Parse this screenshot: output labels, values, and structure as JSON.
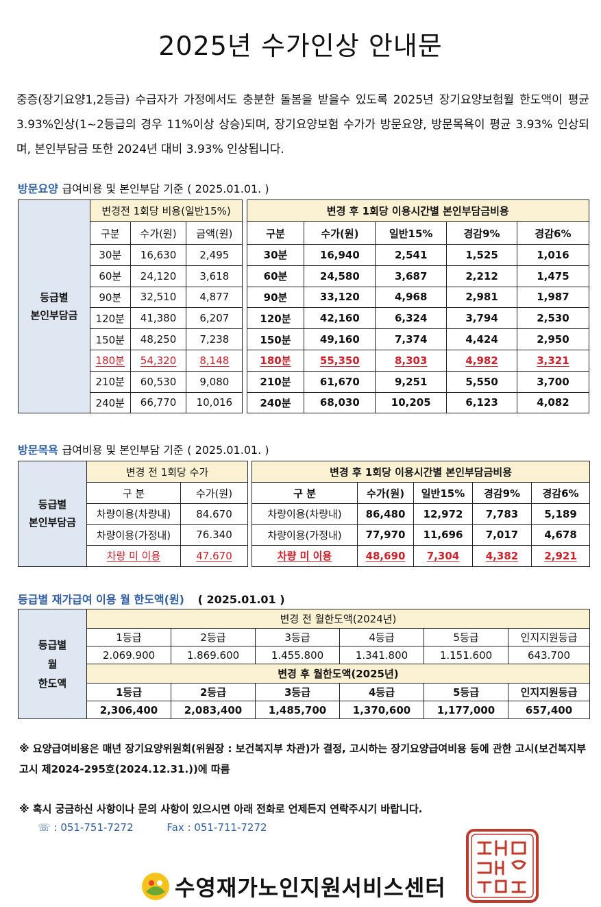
{
  "title": "2025년 수가인상 안내문",
  "intro": "중증(장기요양1,2등급) 수급자가 가정에서도 충분한 돌봄을 받을수 있도록 2025년 장기요양보험월 한도액이 평균 3.93%인상(1~2등급의 경우 11%이상 상승)되며, 장기요양보험 수가가 방문요양, 방문목욕이 평균 3.93% 인상되며, 본인부담금 또한 2024년 대비 3.93% 인상됩니다.",
  "visit_care": {
    "title_accent": "방문요양",
    "title_rest": "급여비용 및 본인부담 기준",
    "date": "( 2025.01.01. )",
    "side_label_1": "등급별",
    "side_label_2": "본인부담금",
    "before_header": "변경전 1회당 비용(일반15%)",
    "after_header": "변경 후 1회당 이용시간별 본인부담금비용",
    "before_cols": [
      "구분",
      "수가(원)",
      "금액(원)"
    ],
    "after_cols": [
      "구분",
      "수가(원)",
      "일반15%",
      "경감9%",
      "경감6%"
    ],
    "rows": [
      {
        "before": [
          "30분",
          "16,630",
          "2,495"
        ],
        "after": [
          "30분",
          "16,940",
          "2,541",
          "1,525",
          "1,016"
        ],
        "highlight": false
      },
      {
        "before": [
          "60분",
          "24,120",
          "3,618"
        ],
        "after": [
          "60분",
          "24,580",
          "3,687",
          "2,212",
          "1,475"
        ],
        "highlight": false
      },
      {
        "before": [
          "90분",
          "32,510",
          "4,877"
        ],
        "after": [
          "90분",
          "33,120",
          "4,968",
          "2,981",
          "1,987"
        ],
        "highlight": false
      },
      {
        "before": [
          "120분",
          "41,380",
          "6,207"
        ],
        "after": [
          "120분",
          "42,160",
          "6,324",
          "3,794",
          "2,530"
        ],
        "highlight": false
      },
      {
        "before": [
          "150분",
          "48,250",
          "7,238"
        ],
        "after": [
          "150분",
          "49,160",
          "7,374",
          "4,424",
          "2,950"
        ],
        "highlight": false
      },
      {
        "before": [
          "180분",
          "54,320",
          "8,148"
        ],
        "after": [
          "180분",
          "55,350",
          "8,303",
          "4,982",
          "3,321"
        ],
        "highlight": true
      },
      {
        "before": [
          "210분",
          "60,530",
          "9,080"
        ],
        "after": [
          "210분",
          "61,670",
          "9,251",
          "5,550",
          "3,700"
        ],
        "highlight": false
      },
      {
        "before": [
          "240분",
          "66,770",
          "10,016"
        ],
        "after": [
          "240분",
          "68,030",
          "10,205",
          "6,123",
          "4,082"
        ],
        "highlight": false
      }
    ]
  },
  "visit_bath": {
    "title_accent": "방문목욕",
    "title_rest": "급여비용 및 본인부담 기준",
    "date": "( 2025.01.01. )",
    "side_label_1": "등급별",
    "side_label_2": "본인부담금",
    "before_header": "변경 전 1회당 수가",
    "after_header": "변경 후 1회당 이용시간별 본인부담금비용",
    "before_cols": [
      "구 분",
      "수가(원)"
    ],
    "after_cols": [
      "구 분",
      "수가(원)",
      "일반15%",
      "경감9%",
      "경감6%"
    ],
    "rows": [
      {
        "before": [
          "차량이용(차량내)",
          "84.670"
        ],
        "after": [
          "차량이용(차량내)",
          "86,480",
          "12,972",
          "7,783",
          "5,189"
        ],
        "highlight": false
      },
      {
        "before": [
          "차량이용(가정내)",
          "76.340"
        ],
        "after": [
          "차량이용(가정내)",
          "77,970",
          "11,696",
          "7,017",
          "4,678"
        ],
        "highlight": false
      },
      {
        "before": [
          "차량 미 이용",
          "47.670"
        ],
        "after": [
          "차량 미 이용",
          "48,690",
          "7,304",
          "4,382",
          "2,921"
        ],
        "highlight": true
      }
    ]
  },
  "monthly_limit": {
    "title_accent": "등급별 재가급여 이용 월 한도액(원)",
    "date": "( 2025.01.01 )",
    "side_label_1": "등급별",
    "side_label_2": "월",
    "side_label_3": "한도액",
    "before_header": "변경 전 월한도액(2024년)",
    "after_header": "변경 후 월한도액(2025년)",
    "grades": [
      "1등급",
      "2등급",
      "3등급",
      "4등급",
      "5등급",
      "인지지원등급"
    ],
    "before_values": [
      "2.069.900",
      "1.869.600",
      "1.455.800",
      "1.341.800",
      "1.151.600",
      "643.700"
    ],
    "after_values": [
      "2,306,400",
      "2,083,400",
      "1,485,700",
      "1,370,600",
      "1,177,000",
      "657,400"
    ]
  },
  "note1": "※ 요양급여비용은 매년 장기요양위원회(위원장 : 보건복지부 차관)가 결정, 고시하는 장기요양급여비용 등에 관한 고시(보건복지부 고시 제2024-295호(2024.12.31.))에  따름",
  "note2": "※ 혹시 궁금하신 사항이나 문의 사항이 있으시면 아래 전화로 언제든지 연락주시기 바랍니다.",
  "phone": "☏ : 051-751-7272",
  "fax": "Fax : 051-711-7272",
  "org_name": "수영재가노인지원서비스센터",
  "seal_text": "수영재가노인지원서비스센터인",
  "colors": {
    "accent": "#2e5fa8",
    "highlight_red": "#d0202a",
    "header_yellow": "#faf2d3",
    "side_blue": "#dfe7f3"
  }
}
